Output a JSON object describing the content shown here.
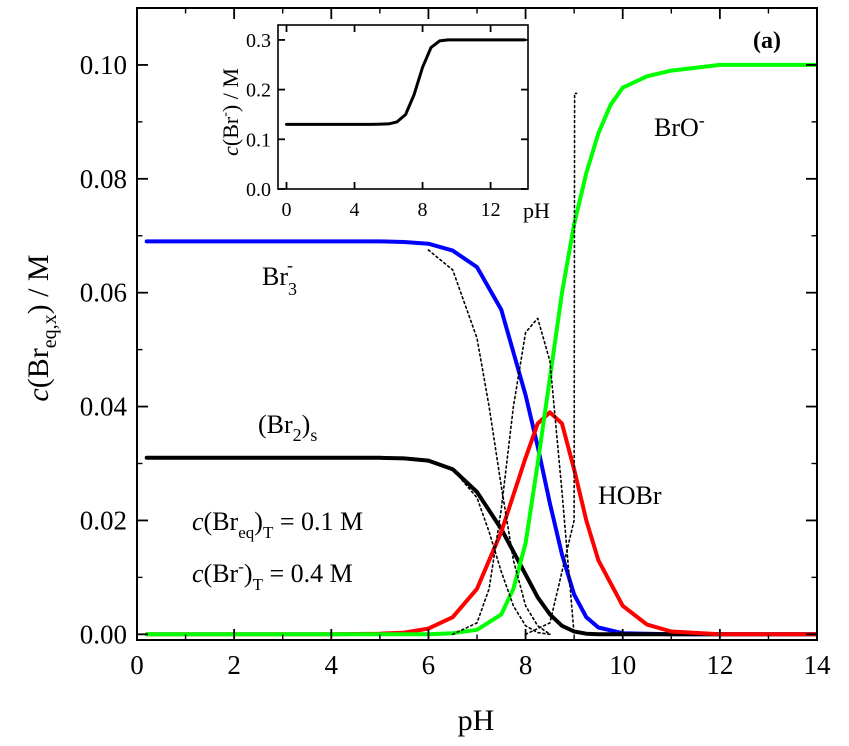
{
  "panel_label": "(a)",
  "chart_data": [
    {
      "type": "line",
      "xlabel": "pH",
      "ylabel": {
        "prefix": "c",
        "base": "(Br",
        "sub": "eq,x",
        "suffix": ") / M"
      },
      "xlim": [
        0,
        14
      ],
      "ylim": [
        -0.001,
        0.11
      ],
      "x_ticks": [
        0,
        2,
        4,
        6,
        8,
        10,
        12,
        14
      ],
      "x_tick_labels": [
        "0",
        "2",
        "4",
        "6",
        "8",
        "10",
        "12",
        "14"
      ],
      "y_ticks": [
        0.0,
        0.02,
        0.04,
        0.06,
        0.08,
        0.1
      ],
      "y_tick_labels": [
        "0.00",
        "0.02",
        "0.04",
        "0.06",
        "0.08",
        "0.10"
      ],
      "series": [
        {
          "name": "Br3-",
          "color": "#0000ff",
          "style": "solid",
          "x": [
            0.2,
            2,
            4,
            5,
            5.5,
            6,
            6.5,
            7,
            7.5,
            8,
            8.25,
            8.5,
            8.75,
            9,
            9.25,
            9.5,
            10,
            11,
            14
          ],
          "y": [
            0.069,
            0.069,
            0.069,
            0.069,
            0.0689,
            0.0686,
            0.0674,
            0.0645,
            0.057,
            0.042,
            0.033,
            0.023,
            0.014,
            0.007,
            0.003,
            0.0012,
            0.0002,
            0.0,
            0.0
          ]
        },
        {
          "name": "(Br2)s",
          "color": "#000000",
          "style": "solid",
          "x": [
            0.2,
            2,
            4,
            5,
            5.5,
            6,
            6.5,
            7,
            7.5,
            8,
            8.25,
            8.5,
            8.75,
            9,
            9.25,
            9.5,
            10,
            14
          ],
          "y": [
            0.031,
            0.031,
            0.031,
            0.031,
            0.0309,
            0.0305,
            0.029,
            0.025,
            0.0185,
            0.0105,
            0.0065,
            0.0035,
            0.0015,
            0.0005,
            0.0001,
            0.0,
            0.0,
            0.0
          ]
        },
        {
          "name": "HOBr",
          "color": "#ff0000",
          "style": "solid",
          "x": [
            0.2,
            4,
            5,
            5.5,
            6,
            6.5,
            7,
            7.5,
            8,
            8.25,
            8.5,
            8.75,
            9,
            9.25,
            9.5,
            10,
            10.5,
            11,
            12,
            14
          ],
          "y": [
            0.0,
            0.0,
            0.0001,
            0.0003,
            0.001,
            0.003,
            0.008,
            0.018,
            0.031,
            0.037,
            0.039,
            0.037,
            0.029,
            0.02,
            0.013,
            0.005,
            0.0017,
            0.0005,
            0.0,
            0.0
          ]
        },
        {
          "name": "BrO-",
          "color": "#00ff00",
          "style": "solid",
          "x": [
            0.2,
            4,
            6,
            6.5,
            7,
            7.5,
            7.75,
            8,
            8.25,
            8.5,
            8.75,
            9,
            9.25,
            9.5,
            9.75,
            10,
            10.5,
            11,
            12,
            14
          ],
          "y": [
            0.0,
            0.0,
            0.0,
            0.0002,
            0.0008,
            0.0035,
            0.008,
            0.016,
            0.03,
            0.045,
            0.06,
            0.072,
            0.081,
            0.088,
            0.093,
            0.096,
            0.098,
            0.099,
            0.1,
            0.1
          ]
        },
        {
          "name": "dotted-1",
          "color": "#000000",
          "style": "dotted",
          "x": [
            6,
            6.5,
            7,
            7.25,
            7.5,
            7.75,
            8,
            8.25,
            8.5
          ],
          "y": [
            0.0675,
            0.064,
            0.052,
            0.04,
            0.026,
            0.013,
            0.005,
            0.0015,
            0.0
          ]
        },
        {
          "name": "dotted-2",
          "color": "#000000",
          "style": "dotted",
          "x": [
            6,
            6.5,
            7,
            7.25,
            7.5,
            7.75,
            8,
            8.25,
            8.5
          ],
          "y": [
            0.0305,
            0.029,
            0.024,
            0.018,
            0.011,
            0.005,
            0.0015,
            0.0003,
            0.0
          ]
        },
        {
          "name": "dotted-3",
          "color": "#000000",
          "style": "dotted",
          "x": [
            6.5,
            7,
            7.25,
            7.5,
            7.75,
            8,
            8.25,
            8.5,
            8.75,
            9
          ],
          "y": [
            0.0,
            0.002,
            0.008,
            0.022,
            0.04,
            0.053,
            0.0555,
            0.048,
            0.025,
            0.0
          ]
        },
        {
          "name": "dotted-4",
          "color": "#000000",
          "style": "dotted",
          "x": [
            8,
            8.5,
            9,
            9.01,
            9.05
          ],
          "y": [
            0.0,
            0.002,
            0.02,
            0.095,
            0.095
          ]
        }
      ],
      "annotations": {
        "br3": {
          "base": "Br",
          "sub": "3",
          "sup": "-"
        },
        "br2s": {
          "open": "(Br",
          "sub_inner": "2",
          "close": ")",
          "sub_outer": "s"
        },
        "hobr": "HOBr",
        "bro": {
          "base": "BrO",
          "sup": "-"
        },
        "total_eq": {
          "prefix": "c",
          "text1": "(Br",
          "sub1": "eq",
          "text2": ")",
          "sub2": "T",
          "value": " = 0.1 M"
        },
        "total_br": {
          "prefix": "c",
          "text1": "(Br",
          "sup1": "-",
          "text2": ")",
          "sub2": "T",
          "value": " = 0.4 M"
        }
      }
    },
    {
      "type": "line",
      "xlabel": "pH",
      "ylabel": {
        "prefix": "c",
        "base": "(Br",
        "sup": "-",
        "suffix": ") / M"
      },
      "xlim": [
        -0.5,
        14.2
      ],
      "ylim": [
        0.0,
        0.33
      ],
      "x_ticks": [
        0,
        4,
        8,
        12
      ],
      "x_tick_labels": [
        "0",
        "4",
        "8",
        "12"
      ],
      "y_ticks": [
        0.0,
        0.1,
        0.2,
        0.3
      ],
      "y_tick_labels": [
        "0.0",
        "0.1",
        "0.2",
        "0.3"
      ],
      "series": [
        {
          "color": "#000000",
          "style": "solid",
          "x": [
            0,
            2,
            4,
            5,
            6,
            6.5,
            7,
            7.5,
            8,
            8.5,
            9,
            9.5,
            10,
            12,
            14
          ],
          "y": [
            0.13,
            0.13,
            0.13,
            0.13,
            0.131,
            0.135,
            0.15,
            0.19,
            0.245,
            0.285,
            0.298,
            0.3,
            0.3,
            0.3,
            0.3
          ]
        }
      ]
    }
  ]
}
